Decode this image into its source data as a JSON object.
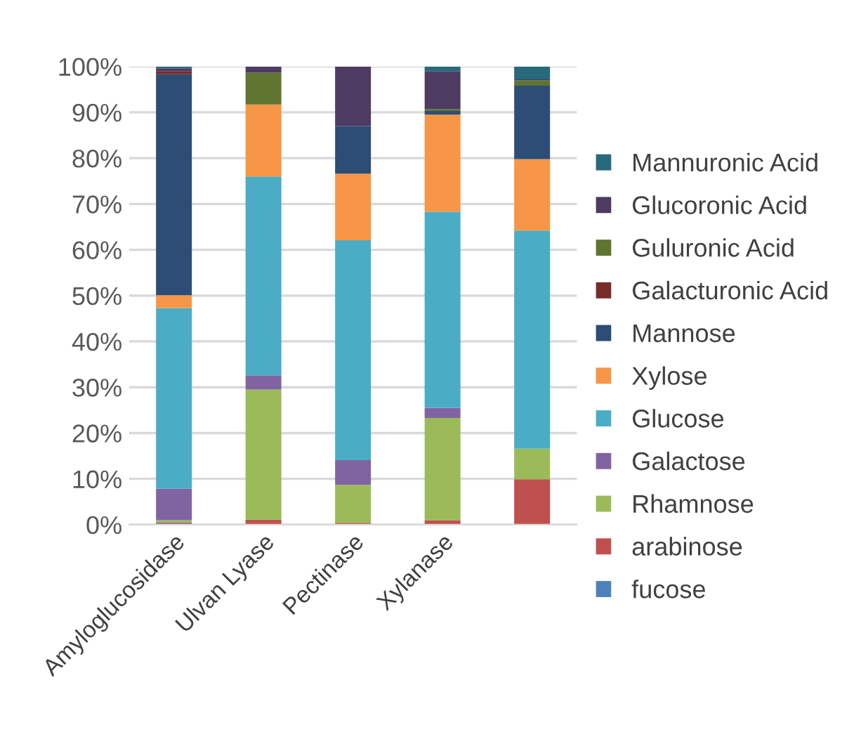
{
  "chart_data": {
    "type": "bar",
    "stacked": true,
    "categories": [
      "Amyloglucosidase",
      "Ulvan Lyase",
      "Pectinase",
      "Xylanase",
      null
    ],
    "series": [
      {
        "name": "fucose",
        "color": "#4f81bd",
        "values": [
          0.3,
          0,
          0,
          0,
          0
        ]
      },
      {
        "name": "arabinose",
        "color": "#c0504d",
        "values": [
          0.2,
          1.1,
          0.4,
          1.0,
          9.9
        ]
      },
      {
        "name": "Rhamnose",
        "color": "#9bbb59",
        "values": [
          0.5,
          28.4,
          8.3,
          22.3,
          6.7
        ]
      },
      {
        "name": "Galactose",
        "color": "#8064a2",
        "values": [
          6.9,
          3.1,
          5.4,
          2.2,
          0
        ]
      },
      {
        "name": "Glucose",
        "color": "#4bacc6",
        "values": [
          39.4,
          43.4,
          48.0,
          42.8,
          47.6
        ]
      },
      {
        "name": "Xylose",
        "color": "#f79646",
        "values": [
          2.8,
          15.7,
          14.5,
          21.2,
          15.6
        ]
      },
      {
        "name": "Mannose",
        "color": "#2c4d75",
        "values": [
          48.2,
          0,
          10.4,
          0.8,
          16.0
        ]
      },
      {
        "name": "Galacturonic Acid",
        "color": "#772c2a",
        "values": [
          0.7,
          0,
          0,
          0,
          0
        ]
      },
      {
        "name": "Guluronic Acid",
        "color": "#5f7530",
        "values": [
          0,
          7.0,
          0,
          0.4,
          1.2
        ]
      },
      {
        "name": "Glucoronic Acid",
        "color": "#4d3b62",
        "values": [
          0.6,
          1.3,
          13.0,
          8.3,
          0.2
        ]
      },
      {
        "name": "Mannuronic Acid",
        "color": "#276a7c",
        "values": [
          0.4,
          0,
          0,
          1.0,
          2.8
        ]
      }
    ],
    "ylim": [
      0,
      100
    ],
    "yticks": [
      {
        "value": 0,
        "label": "0%"
      },
      {
        "value": 10,
        "label": "10%"
      },
      {
        "value": 20,
        "label": "20%"
      },
      {
        "value": 30,
        "label": "30%"
      },
      {
        "value": 40,
        "label": "40%"
      },
      {
        "value": 50,
        "label": "50%"
      },
      {
        "value": 60,
        "label": "60%"
      },
      {
        "value": 70,
        "label": "70%"
      },
      {
        "value": 80,
        "label": "80%"
      },
      {
        "value": 90,
        "label": "90%"
      },
      {
        "value": 100,
        "label": "100%"
      }
    ],
    "grid": "y",
    "legend": "right"
  }
}
